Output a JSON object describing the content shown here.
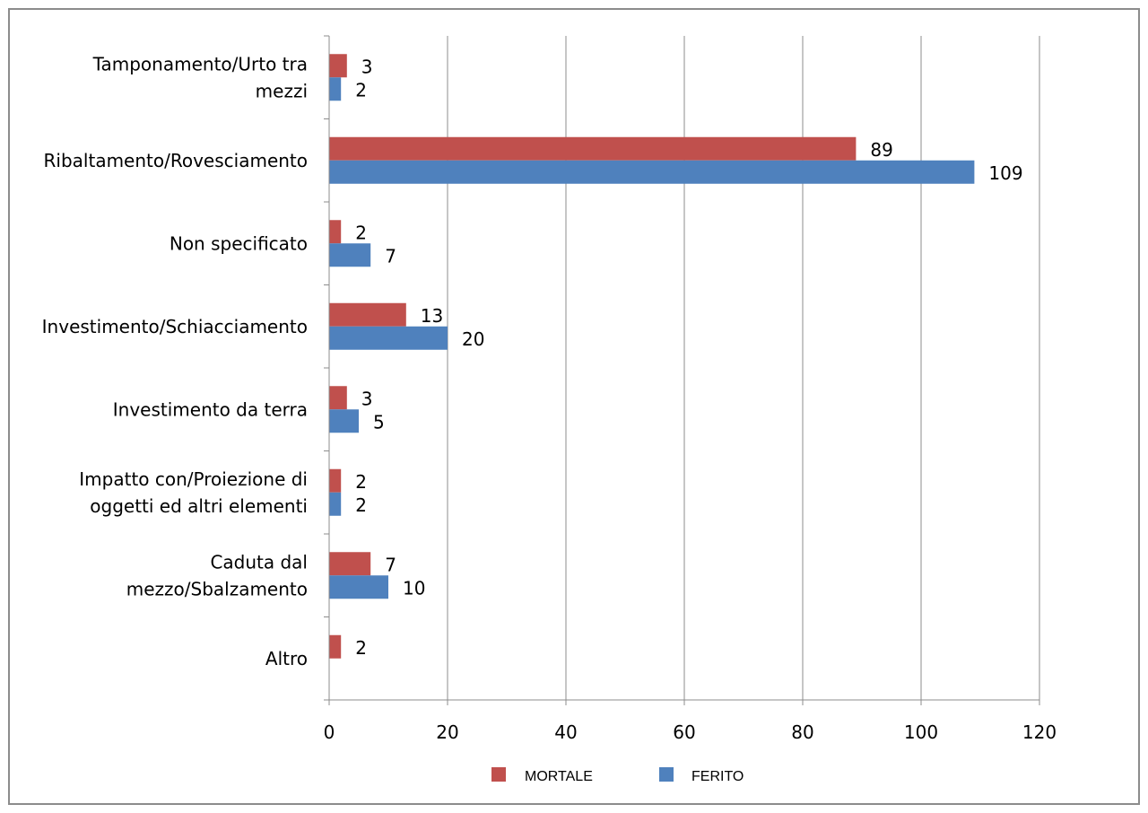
{
  "chart_data": {
    "type": "bar",
    "orientation": "horizontal",
    "categories": [
      "Tamponamento/Urto tra mezzi",
      "Ribaltamento/Rovesciamento",
      "Non specificato",
      "Investimento/Schiacciamento",
      "Investimento da terra",
      "Impatto con/Proiezione di oggetti ed altri elementi",
      "Caduta dal mezzo/Sbalzamento",
      "Altro"
    ],
    "category_lines": [
      [
        "Tamponamento/Urto tra",
        "mezzi"
      ],
      [
        "Ribaltamento/Rovesciamento"
      ],
      [
        "Non specificato"
      ],
      [
        "Investimento/Schiacciamento"
      ],
      [
        "Investimento da terra"
      ],
      [
        "Impatto con/Proiezione di",
        "oggetti ed altri elementi"
      ],
      [
        "Caduta dal",
        "mezzo/Sbalzamento"
      ],
      [
        "Altro"
      ]
    ],
    "series": [
      {
        "name": "MORTALE",
        "color": "#c0504d",
        "values": [
          3,
          89,
          2,
          13,
          3,
          2,
          7,
          2
        ]
      },
      {
        "name": "FERITO",
        "color": "#4f81bd",
        "values": [
          2,
          109,
          7,
          20,
          5,
          2,
          10,
          null
        ]
      }
    ],
    "xlim": [
      0,
      120
    ],
    "xticks": [
      0,
      20,
      40,
      60,
      80,
      100,
      120
    ],
    "grid": true,
    "legend_position": "bottom"
  }
}
